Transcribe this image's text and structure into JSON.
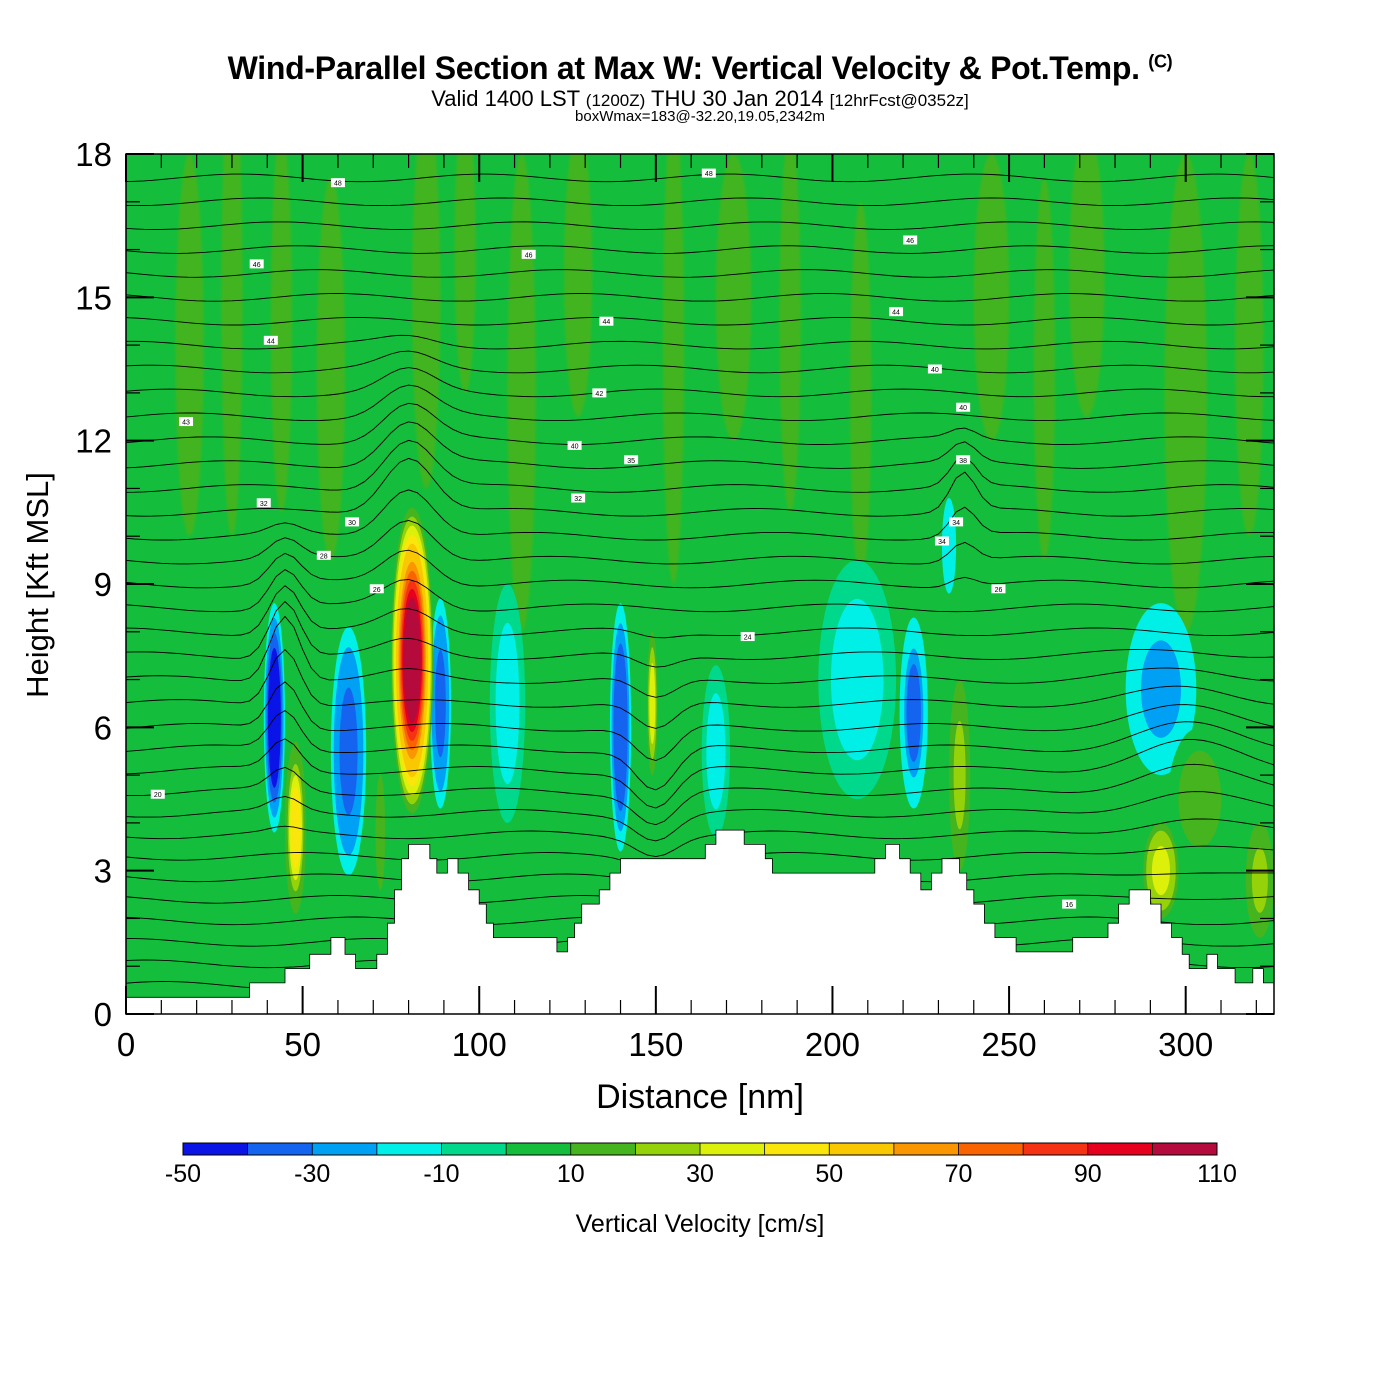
{
  "header": {
    "title": "Wind-Parallel Section at Max W: Vertical Velocity & Pot.Temp.",
    "copyright": "(C)",
    "valid_prefix": "Valid 1400 LST",
    "valid_utc": "(1200Z)",
    "valid_date": "THU 30 Jan 2014",
    "forecast": "[12hrFcst@0352z]",
    "box_info": "boxWmax=183@-32.20,19.05,2342m"
  },
  "chart_data": {
    "type": "heatmap",
    "title": "Wind-Parallel Section at Max W: Vertical Velocity & Pot.Temp.",
    "xlabel": "Distance [nm]",
    "ylabel": "Height [Kft MSL]",
    "xlim": [
      0,
      325
    ],
    "ylim": [
      0,
      18
    ],
    "xticks": [
      0,
      50,
      100,
      150,
      200,
      250,
      300
    ],
    "yticks": [
      0,
      3,
      6,
      9,
      12,
      15,
      18
    ],
    "colorbar": {
      "label": "Vertical Velocity [cm/s]",
      "ticks": [
        -50,
        -30,
        -10,
        10,
        30,
        50,
        70,
        90,
        110
      ],
      "bounds": [
        -50,
        -40,
        -30,
        -20,
        -10,
        0,
        10,
        20,
        30,
        40,
        50,
        60,
        70,
        80,
        90,
        100,
        110
      ],
      "colors": [
        "#0a14e6",
        "#1464f0",
        "#00a0f5",
        "#00f0e8",
        "#00d98c",
        "#14be3c",
        "#46b41e",
        "#96d20a",
        "#dcf00a",
        "#fae60a",
        "#fac800",
        "#fa9600",
        "#fa6400",
        "#f53214",
        "#e6001e",
        "#b40a3c"
      ]
    },
    "terrain_kft": [
      [
        0,
        0.35
      ],
      [
        35,
        0.35
      ],
      [
        35,
        0.65
      ],
      [
        45,
        0.65
      ],
      [
        45,
        0.95
      ],
      [
        52,
        0.95
      ],
      [
        52,
        1.25
      ],
      [
        58,
        1.25
      ],
      [
        58,
        1.6
      ],
      [
        62,
        1.6
      ],
      [
        62,
        1.25
      ],
      [
        65,
        1.25
      ],
      [
        65,
        0.95
      ],
      [
        71,
        0.95
      ],
      [
        71,
        1.25
      ],
      [
        74,
        1.25
      ],
      [
        74,
        1.9
      ],
      [
        76,
        1.9
      ],
      [
        76,
        2.6
      ],
      [
        78,
        2.6
      ],
      [
        78,
        3.25
      ],
      [
        80,
        3.25
      ],
      [
        80,
        3.55
      ],
      [
        86,
        3.55
      ],
      [
        86,
        3.25
      ],
      [
        88,
        3.25
      ],
      [
        88,
        2.95
      ],
      [
        91,
        2.95
      ],
      [
        91,
        3.25
      ],
      [
        94,
        3.25
      ],
      [
        94,
        2.95
      ],
      [
        97,
        2.95
      ],
      [
        97,
        2.6
      ],
      [
        100,
        2.6
      ],
      [
        100,
        2.3
      ],
      [
        102,
        2.3
      ],
      [
        102,
        1.9
      ],
      [
        104,
        1.9
      ],
      [
        104,
        1.6
      ],
      [
        122,
        1.6
      ],
      [
        122,
        1.3
      ],
      [
        125,
        1.3
      ],
      [
        125,
        1.6
      ],
      [
        127,
        1.6
      ],
      [
        127,
        1.9
      ],
      [
        129,
        1.9
      ],
      [
        129,
        2.3
      ],
      [
        134,
        2.3
      ],
      [
        134,
        2.6
      ],
      [
        137,
        2.6
      ],
      [
        137,
        2.95
      ],
      [
        140,
        2.95
      ],
      [
        140,
        3.25
      ],
      [
        164,
        3.25
      ],
      [
        164,
        3.55
      ],
      [
        167,
        3.55
      ],
      [
        167,
        3.85
      ],
      [
        175,
        3.85
      ],
      [
        175,
        3.55
      ],
      [
        181,
        3.55
      ],
      [
        181,
        3.25
      ],
      [
        183,
        3.25
      ],
      [
        183,
        2.95
      ],
      [
        212,
        2.95
      ],
      [
        212,
        3.25
      ],
      [
        215,
        3.25
      ],
      [
        215,
        3.55
      ],
      [
        219,
        3.55
      ],
      [
        219,
        3.25
      ],
      [
        222,
        3.25
      ],
      [
        222,
        2.95
      ],
      [
        225,
        2.95
      ],
      [
        225,
        2.6
      ],
      [
        228,
        2.6
      ],
      [
        228,
        2.95
      ],
      [
        231,
        2.95
      ],
      [
        231,
        3.25
      ],
      [
        236,
        3.25
      ],
      [
        236,
        2.95
      ],
      [
        238,
        2.95
      ],
      [
        238,
        2.6
      ],
      [
        240,
        2.6
      ],
      [
        240,
        2.3
      ],
      [
        243,
        2.3
      ],
      [
        243,
        1.9
      ],
      [
        246,
        1.9
      ],
      [
        246,
        1.6
      ],
      [
        252,
        1.6
      ],
      [
        252,
        1.3
      ],
      [
        268,
        1.3
      ],
      [
        268,
        1.6
      ],
      [
        278,
        1.6
      ],
      [
        278,
        1.9
      ],
      [
        281,
        1.9
      ],
      [
        281,
        2.3
      ],
      [
        284,
        2.3
      ],
      [
        284,
        2.6
      ],
      [
        290,
        2.6
      ],
      [
        290,
        2.3
      ],
      [
        293,
        2.3
      ],
      [
        293,
        1.9
      ],
      [
        296,
        1.9
      ],
      [
        296,
        1.6
      ],
      [
        299,
        1.6
      ],
      [
        299,
        1.25
      ],
      [
        301,
        1.25
      ],
      [
        301,
        0.95
      ],
      [
        306,
        0.95
      ],
      [
        306,
        1.25
      ],
      [
        309,
        1.25
      ],
      [
        309,
        0.95
      ],
      [
        314,
        0.95
      ],
      [
        314,
        0.65
      ],
      [
        319,
        0.65
      ],
      [
        319,
        0.95
      ],
      [
        322,
        0.95
      ],
      [
        322,
        0.65
      ],
      [
        325,
        0.65
      ]
    ],
    "updrafts": [
      {
        "x": 81,
        "y": 7.4,
        "rx": 6,
        "ry": 3.2,
        "peak": 105
      },
      {
        "x": 48,
        "y": 3.9,
        "rx": 3,
        "ry": 1.8,
        "peak": 42
      },
      {
        "x": 149,
        "y": 6.5,
        "rx": 1.5,
        "ry": 1.5,
        "peak": 30
      },
      {
        "x": 236,
        "y": 5.0,
        "rx": 3,
        "ry": 2.0,
        "peak": 22
      },
      {
        "x": 293,
        "y": 3.0,
        "rx": 5,
        "ry": 1.0,
        "peak": 38
      },
      {
        "x": 321,
        "y": 2.8,
        "rx": 4,
        "ry": 1.2,
        "peak": 24
      },
      {
        "x": 304,
        "y": 4.5,
        "rx": 9,
        "ry": 1.5,
        "peak": 14
      },
      {
        "x": 72,
        "y": 3.8,
        "rx": 2,
        "ry": 1.8,
        "peak": 14
      }
    ],
    "downdrafts": [
      {
        "x": 42,
        "y": 6.2,
        "rx": 3,
        "ry": 2.4,
        "peak": -50
      },
      {
        "x": 63,
        "y": 5.5,
        "rx": 5,
        "ry": 2.6,
        "peak": -38
      },
      {
        "x": 89,
        "y": 6.5,
        "rx": 3,
        "ry": 2.2,
        "peak": -38
      },
      {
        "x": 140,
        "y": 6.0,
        "rx": 3,
        "ry": 2.6,
        "peak": -40
      },
      {
        "x": 223,
        "y": 6.3,
        "rx": 4,
        "ry": 2.0,
        "peak": -35
      },
      {
        "x": 207,
        "y": 7.0,
        "rx": 11,
        "ry": 2.5,
        "peak": -15
      },
      {
        "x": 293,
        "y": 6.8,
        "rx": 10,
        "ry": 1.8,
        "peak": -22
      },
      {
        "x": 108,
        "y": 6.5,
        "rx": 5,
        "ry": 2.5,
        "peak": -14
      },
      {
        "x": 167,
        "y": 5.5,
        "rx": 4,
        "ry": 1.8,
        "peak": -12
      },
      {
        "x": 233,
        "y": 9.8,
        "rx": 2,
        "ry": 1.0,
        "peak": -16
      }
    ],
    "theta_labels": [
      {
        "x": 60,
        "y": 17.4,
        "text": "48"
      },
      {
        "x": 165,
        "y": 17.6,
        "text": "48"
      },
      {
        "x": 37,
        "y": 15.7,
        "text": "46"
      },
      {
        "x": 114,
        "y": 15.9,
        "text": "46"
      },
      {
        "x": 222,
        "y": 16.2,
        "text": "46"
      },
      {
        "x": 41,
        "y": 14.1,
        "text": "44"
      },
      {
        "x": 136,
        "y": 14.5,
        "text": "44"
      },
      {
        "x": 218,
        "y": 14.7,
        "text": "44"
      },
      {
        "x": 17,
        "y": 12.4,
        "text": "43"
      },
      {
        "x": 134,
        "y": 13.0,
        "text": "42"
      },
      {
        "x": 229,
        "y": 13.5,
        "text": "40"
      },
      {
        "x": 237,
        "y": 12.7,
        "text": "40"
      },
      {
        "x": 127,
        "y": 11.9,
        "text": "40"
      },
      {
        "x": 143,
        "y": 11.6,
        "text": "35"
      },
      {
        "x": 237,
        "y": 11.6,
        "text": "38"
      },
      {
        "x": 39,
        "y": 10.7,
        "text": "32"
      },
      {
        "x": 128,
        "y": 10.8,
        "text": "32"
      },
      {
        "x": 64,
        "y": 10.3,
        "text": "30"
      },
      {
        "x": 235,
        "y": 10.3,
        "text": "34"
      },
      {
        "x": 231,
        "y": 9.9,
        "text": "34"
      },
      {
        "x": 56,
        "y": 9.6,
        "text": "28"
      },
      {
        "x": 71,
        "y": 8.9,
        "text": "26"
      },
      {
        "x": 247,
        "y": 8.9,
        "text": "26"
      },
      {
        "x": 176,
        "y": 7.9,
        "text": "24"
      },
      {
        "x": 9,
        "y": 4.6,
        "text": "20"
      },
      {
        "x": 267,
        "y": 2.3,
        "text": "16"
      }
    ]
  }
}
